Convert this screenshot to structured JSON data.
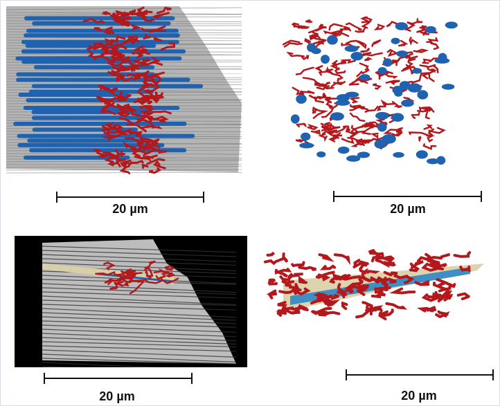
{
  "panels": [
    {
      "id": "top-left",
      "scale_label": "20 µm"
    },
    {
      "id": "top-right",
      "scale_label": "20 µm"
    },
    {
      "id": "bottom-left",
      "scale_label": "20 µm"
    },
    {
      "id": "bottom-right",
      "scale_label": "20 µm"
    }
  ],
  "colors": {
    "red_structure": "#b3181c",
    "blue_structure": "#1f63b0",
    "tissue_grey": "#9a9a9a",
    "background_dark": "#000000",
    "tan_layer": "#d9cfa6"
  }
}
